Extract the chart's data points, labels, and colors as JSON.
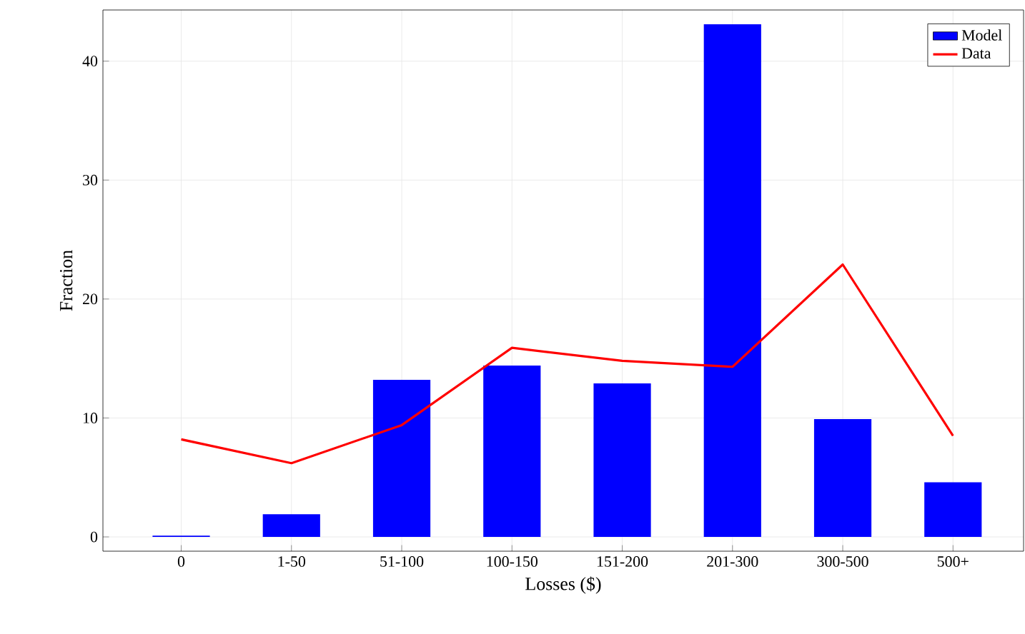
{
  "chart_data": {
    "type": "bar",
    "xlabel": "Losses ($)",
    "ylabel": "Fraction",
    "categories": [
      "0",
      "1-50",
      "51-100",
      "100-150",
      "151-200",
      "201-300",
      "300-500",
      "500+"
    ],
    "series": [
      {
        "name": "Model",
        "color": "#0000ff",
        "values": [
          0.1,
          1.9,
          13.2,
          14.4,
          12.9,
          43.1,
          9.9,
          4.6
        ]
      },
      {
        "name": "Data",
        "type": "line",
        "color": "#ff0000",
        "values": [
          8.2,
          6.2,
          9.4,
          15.9,
          14.8,
          14.3,
          22.9,
          8.5
        ]
      }
    ],
    "ylim": [
      -1.2,
      44.3
    ],
    "yticks": [
      0,
      10,
      20,
      30,
      40
    ],
    "grid": true,
    "legend": "top right"
  }
}
